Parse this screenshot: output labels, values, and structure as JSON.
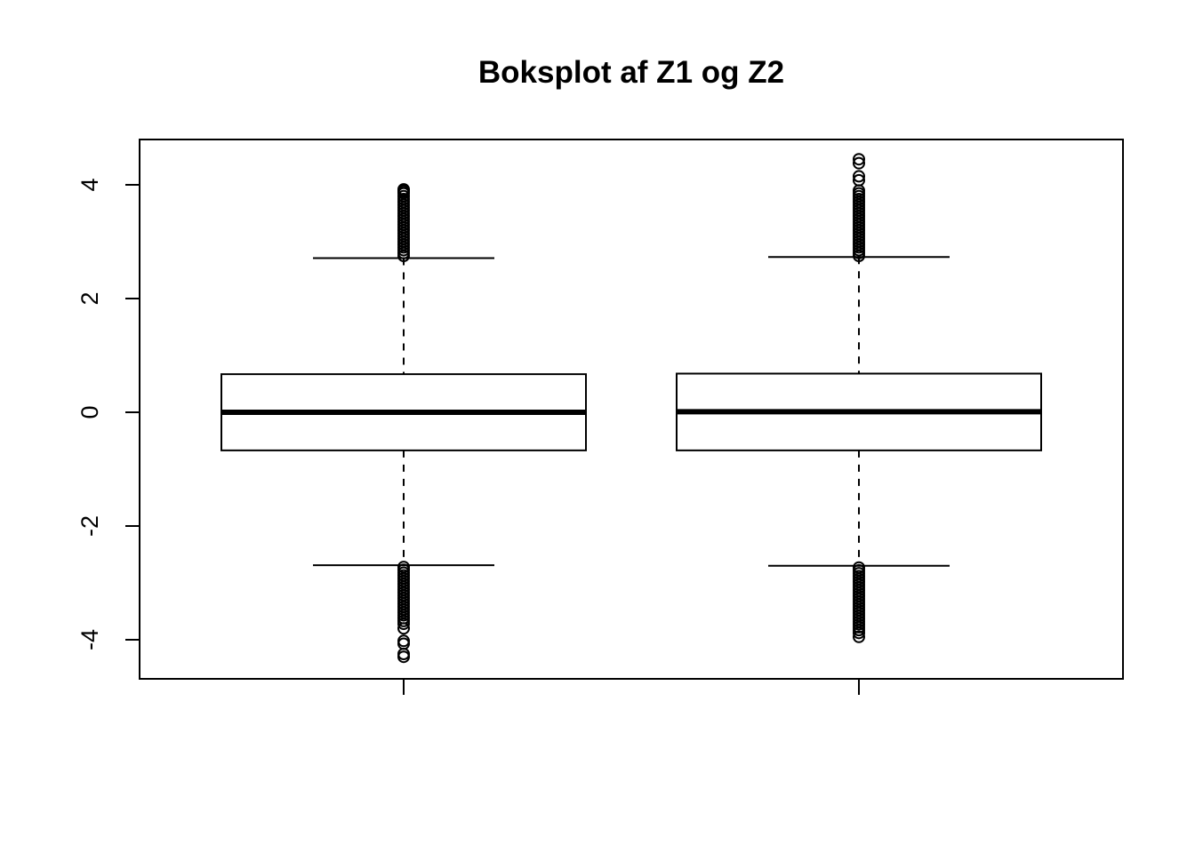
{
  "chart_data": {
    "type": "boxplot",
    "title": "Boksplot af Z1 og Z2",
    "xlabel": "",
    "ylabel": "",
    "ylim": [
      -4.4,
      5.0
    ],
    "y_ticks": [
      -4,
      -2,
      0,
      2,
      4
    ],
    "y_tick_labels": [
      "-4",
      "-2",
      "0",
      "2",
      "4"
    ],
    "grid": false,
    "legend": "none",
    "series": [
      {
        "whisker_low": -2.69,
        "q1": -0.67,
        "median": 0.0,
        "q3": 0.67,
        "whisker_high": 2.71,
        "outliers": [
          3.92,
          3.9,
          3.88,
          3.85,
          3.8,
          3.75,
          3.7,
          3.65,
          3.6,
          3.55,
          3.5,
          3.45,
          3.4,
          3.35,
          3.3,
          3.25,
          3.2,
          3.15,
          3.1,
          3.05,
          3.0,
          2.95,
          2.9,
          2.85,
          2.8,
          2.75,
          -2.72,
          -2.77,
          -2.82,
          -2.87,
          -2.92,
          -2.97,
          -3.02,
          -3.07,
          -3.12,
          -3.17,
          -3.22,
          -3.27,
          -3.32,
          -3.37,
          -3.42,
          -3.47,
          -3.52,
          -3.57,
          -3.62,
          -3.67,
          -3.72,
          -3.8,
          -4.02,
          -4.07,
          -4.25,
          -4.3
        ]
      },
      {
        "whisker_low": -2.7,
        "q1": -0.67,
        "median": 0.01,
        "q3": 0.68,
        "whisker_high": 2.73,
        "outliers": [
          4.45,
          4.38,
          4.15,
          4.08,
          3.9,
          3.85,
          3.8,
          3.75,
          3.7,
          3.65,
          3.6,
          3.55,
          3.5,
          3.45,
          3.4,
          3.35,
          3.3,
          3.25,
          3.2,
          3.15,
          3.1,
          3.05,
          3.0,
          2.95,
          2.9,
          2.85,
          2.8,
          2.75,
          -2.73,
          -2.78,
          -2.83,
          -2.88,
          -2.93,
          -2.98,
          -3.03,
          -3.08,
          -3.13,
          -3.18,
          -3.23,
          -3.28,
          -3.33,
          -3.38,
          -3.43,
          -3.48,
          -3.53,
          -3.58,
          -3.63,
          -3.68,
          -3.73,
          -3.78,
          -3.83,
          -3.88,
          -3.95
        ]
      }
    ]
  }
}
